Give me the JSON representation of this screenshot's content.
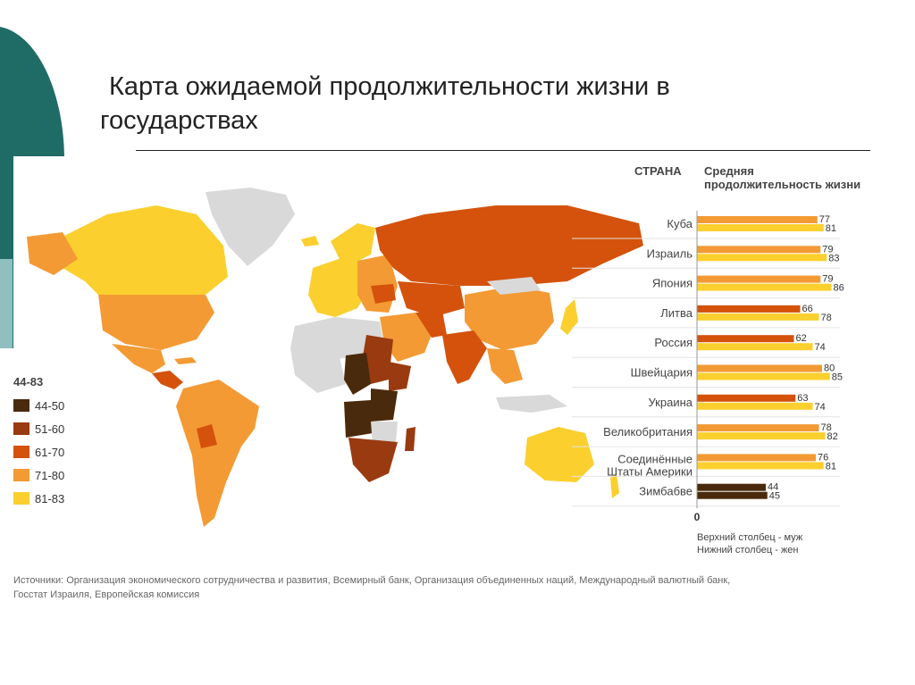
{
  "title_line1": "Карта ожидаемой  продолжительности жизни в",
  "title_line2": "государствах",
  "legend": {
    "title": "44-83",
    "items": [
      {
        "label": "44-50",
        "color": "#4a2a0c"
      },
      {
        "label": "51-60",
        "color": "#9a3a10"
      },
      {
        "label": "61-70",
        "color": "#d4520c"
      },
      {
        "label": "71-80",
        "color": "#f39a34"
      },
      {
        "label": "81-83",
        "color": "#fbcf2e"
      }
    ],
    "no_data_color": "#d9d9d9"
  },
  "chart": {
    "col_country": "СТРАНА",
    "col_value": "Средняя продолжительность жизни",
    "zero_label": "0",
    "note_line1": "Верхний столбец - муж",
    "note_line2": "Нижний столбец - жен",
    "countries": [
      {
        "name": [
          "Куба"
        ],
        "male": 77,
        "female": 81
      },
      {
        "name": [
          "Израиль"
        ],
        "male": 79,
        "female": 83
      },
      {
        "name": [
          "Япония"
        ],
        "male": 79,
        "female": 86
      },
      {
        "name": [
          "Литва"
        ],
        "male": 66,
        "female": 78
      },
      {
        "name": [
          "Россия"
        ],
        "male": 62,
        "female": 74
      },
      {
        "name": [
          "Швейцария"
        ],
        "male": 80,
        "female": 85
      },
      {
        "name": [
          "Украина"
        ],
        "male": 63,
        "female": 74
      },
      {
        "name": [
          "Великобритания"
        ],
        "male": 78,
        "female": 82
      },
      {
        "name": [
          "Соединённые",
          "Штаты Америки"
        ],
        "male": 76,
        "female": 81
      },
      {
        "name": [
          "Зимбабве"
        ],
        "male": 44,
        "female": 45
      }
    ]
  },
  "chart_data": {
    "type": "bar",
    "orientation": "horizontal",
    "categories": [
      "Куба",
      "Израиль",
      "Япония",
      "Литва",
      "Россия",
      "Швейцария",
      "Украина",
      "Великобритания",
      "Соединённые Штаты Америки",
      "Зимбабве"
    ],
    "series": [
      {
        "values": [
          77,
          79,
          79,
          66,
          62,
          80,
          63,
          78,
          76,
          44
        ]
      },
      {
        "values": [
          81,
          83,
          86,
          78,
          74,
          85,
          74,
          82,
          81,
          45
        ]
      }
    ],
    "xlim": [
      0,
      86
    ]
  },
  "source_line1": "Источники: Организация экономического сотрудничества и развития, Всемирный банк, Организация объединенных наций, Международный валютный банк,",
  "source_line2": "Госстат Израиля, Европейская комиссия"
}
